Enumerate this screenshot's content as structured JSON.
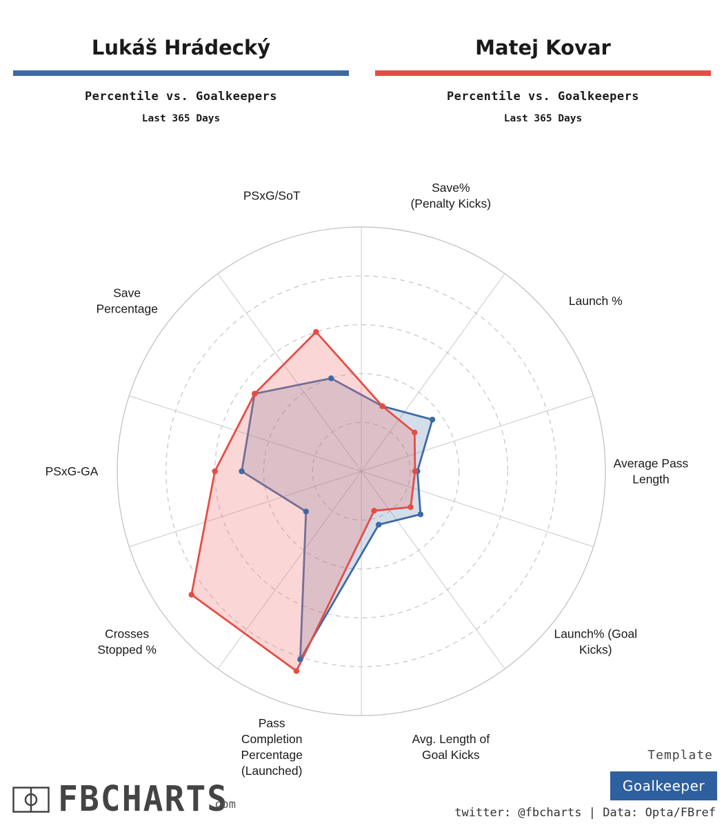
{
  "players": [
    {
      "name": "Lukáš Hrádecký",
      "color": "#3d6aa3"
    },
    {
      "name": "Matej Kovar",
      "color": "#e44d44"
    }
  ],
  "header": {
    "subtitle": "Percentile vs. Goalkeepers",
    "period": "Last 365 Days"
  },
  "chart_data": {
    "type": "radar",
    "title": "Percentile vs. Goalkeepers",
    "subtitle": "Last 365 Days",
    "range": [
      0,
      100
    ],
    "grid": "concentric rings at 20, 40, 60, 80, 100",
    "axes": [
      {
        "label_lines": [
          "Save%",
          "(Penalty Kicks)"
        ]
      },
      {
        "label_lines": [
          "Launch %"
        ]
      },
      {
        "label_lines": [
          "Average Pass",
          "Length"
        ]
      },
      {
        "label_lines": [
          "Launch% (Goal",
          "Kicks)"
        ]
      },
      {
        "label_lines": [
          "Avg. Length of",
          "Goal Kicks"
        ]
      },
      {
        "label_lines": [
          "Pass",
          "Completion",
          "Percentage",
          "(Launched)"
        ]
      },
      {
        "label_lines": [
          "Crosses",
          "Stopped %"
        ]
      },
      {
        "label_lines": [
          "PSxG-GA"
        ]
      },
      {
        "label_lines": [
          "Save",
          "Percentage"
        ]
      },
      {
        "label_lines": [
          "PSxG/SoT"
        ]
      }
    ],
    "series": [
      {
        "name": "Lukáš Hrádecký",
        "color": "#3d6aa3",
        "fill": "rgba(61,106,163,0.22)",
        "values": [
          28,
          36,
          23,
          30,
          23,
          81,
          28,
          49,
          54,
          40
        ]
      },
      {
        "name": "Matej Kovar",
        "color": "#e44d44",
        "fill": "rgba(243,120,120,0.30)",
        "values": [
          28,
          27,
          22,
          25,
          17,
          86,
          86,
          60,
          54,
          60
        ]
      }
    ]
  },
  "footer": {
    "template_label": "Template",
    "template_value": "Goalkeeper",
    "template_color": "#2e5f9e",
    "credit": "twitter: @fbcharts | Data: Opta/FBref",
    "logo_text": "FBCHARTS",
    "logo_suffix": ".com"
  }
}
